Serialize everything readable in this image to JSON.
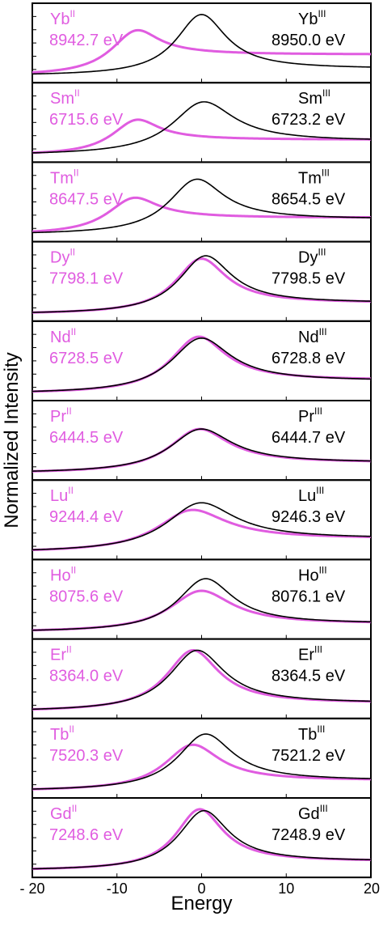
{
  "colors": {
    "ii": "#e05ce0",
    "iii": "#000000",
    "frame": "#000000"
  },
  "chart_data": {
    "type": "line",
    "xlabel": "Energy",
    "ylabel": "Normalized Intensity",
    "xlim": [
      -20,
      20
    ],
    "xticks": [
      -20,
      -10,
      0,
      10,
      20
    ],
    "xtick_labels": [
      "- 20",
      "-10",
      "0",
      "10",
      "20"
    ],
    "grid": false,
    "panels": [
      {
        "ii_el": "Yb",
        "ii_ox": "II",
        "ii_energy": "8942.7 eV",
        "iii_el": "Yb",
        "iii_ox": "III",
        "iii_energy": "8950.0 eV",
        "iii": {
          "center": 0,
          "width": 3.6,
          "height": 0.86,
          "base": 0.05,
          "tail": 0.1
        },
        "ii": {
          "center": -7.5,
          "width": 3.6,
          "height": 0.64,
          "base": 0.05,
          "tail": 0.3
        }
      },
      {
        "ii_el": "Sm",
        "ii_ox": "II",
        "ii_energy": "6715.6 eV",
        "iii_el": "Sm",
        "iii_ox": "III",
        "iii_energy": "6723.2 eV",
        "iii": {
          "center": 0.3,
          "width": 4.5,
          "height": 0.75,
          "base": 0.05,
          "tail": 0.2
        },
        "ii": {
          "center": -7.5,
          "width": 3.5,
          "height": 0.5,
          "base": 0.05,
          "tail": 0.22
        }
      },
      {
        "ii_el": "Tm",
        "ii_ox": "II",
        "ii_energy": "8647.5 eV",
        "iii_el": "Tm",
        "iii_ox": "III",
        "iii_energy": "8654.5 eV",
        "iii": {
          "center": -0.5,
          "width": 4.0,
          "height": 0.78,
          "base": 0.05,
          "tail": 0.22
        },
        "ii": {
          "center": -7.8,
          "width": 3.8,
          "height": 0.52,
          "base": 0.05,
          "tail": 0.24
        }
      },
      {
        "ii_el": "Dy",
        "ii_ox": "II",
        "ii_energy": "7798.1 eV",
        "iii_el": "Dy",
        "iii_ox": "III",
        "iii_energy": "7798.5 eV",
        "iii": {
          "center": 0.5,
          "width": 3.8,
          "height": 0.82,
          "base": 0.05,
          "tail": 0.16
        },
        "ii": {
          "center": 0.0,
          "width": 3.7,
          "height": 0.78,
          "base": 0.05,
          "tail": 0.16
        }
      },
      {
        "ii_el": "Nd",
        "ii_ox": "II",
        "ii_energy": "6728.5 eV",
        "iii_el": "Nd",
        "iii_ox": "III",
        "iii_energy": "6728.8 eV",
        "iii": {
          "center": 0.0,
          "width": 4.3,
          "height": 0.78,
          "base": 0.05,
          "tail": 0.18
        },
        "ii": {
          "center": -0.3,
          "width": 4.0,
          "height": 0.8,
          "base": 0.05,
          "tail": 0.19
        }
      },
      {
        "ii_el": "Pr",
        "ii_ox": "II",
        "ii_energy": "6444.5 eV",
        "iii_el": "Pr",
        "iii_ox": "III",
        "iii_energy": "6444.7 eV",
        "iii": {
          "center": 0.0,
          "width": 4.5,
          "height": 0.62,
          "base": 0.05,
          "tail": 0.15
        },
        "ii": {
          "center": -0.2,
          "width": 4.3,
          "height": 0.62,
          "base": 0.05,
          "tail": 0.15
        }
      },
      {
        "ii_el": "Lu",
        "ii_ox": "II",
        "ii_energy": "9244.4 eV",
        "iii_el": "Lu",
        "iii_ox": "III",
        "iii_energy": "9246.3 eV",
        "iii": {
          "center": 0.0,
          "width": 5.0,
          "height": 0.7,
          "base": 0.05,
          "tail": 0.2
        },
        "ii": {
          "center": -1.0,
          "width": 5.0,
          "height": 0.6,
          "base": 0.05,
          "tail": 0.2
        }
      },
      {
        "ii_el": "Ho",
        "ii_ox": "II",
        "ii_energy": "8075.6 eV",
        "iii_el": "Ho",
        "iii_ox": "III",
        "iii_energy": "8076.1 eV",
        "iii": {
          "center": 0.5,
          "width": 4.0,
          "height": 0.75,
          "base": 0.05,
          "tail": 0.12
        },
        "ii": {
          "center": 0.0,
          "width": 4.5,
          "height": 0.58,
          "base": 0.05,
          "tail": 0.12
        }
      },
      {
        "ii_el": "Er",
        "ii_ox": "II",
        "ii_energy": "8364.0 eV",
        "iii_el": "Er",
        "iii_ox": "III",
        "iii_energy": "8364.5 eV",
        "iii": {
          "center": -0.5,
          "width": 4.0,
          "height": 0.86,
          "base": 0.05,
          "tail": 0.12
        },
        "ii": {
          "center": -1.0,
          "width": 3.8,
          "height": 0.86,
          "base": 0.05,
          "tail": 0.12
        }
      },
      {
        "ii_el": "Tb",
        "ii_ox": "II",
        "ii_energy": "7520.3 eV",
        "iii_el": "Tb",
        "iii_ox": "III",
        "iii_energy": "7521.2 eV",
        "iii": {
          "center": 0.5,
          "width": 4.0,
          "height": 0.8,
          "base": 0.05,
          "tail": 0.15
        },
        "ii": {
          "center": -1.0,
          "width": 4.0,
          "height": 0.65,
          "base": 0.05,
          "tail": 0.15
        }
      },
      {
        "ii_el": "Gd",
        "ii_ox": "II",
        "ii_energy": "7248.6 eV",
        "iii_el": "Gd",
        "iii_ox": "III",
        "iii_energy": "7248.9 eV",
        "iii": {
          "center": 0.3,
          "width": 3.6,
          "height": 0.84,
          "base": 0.05,
          "tail": 0.13
        },
        "ii": {
          "center": -0.2,
          "width": 3.4,
          "height": 0.86,
          "base": 0.05,
          "tail": 0.13
        }
      }
    ]
  }
}
